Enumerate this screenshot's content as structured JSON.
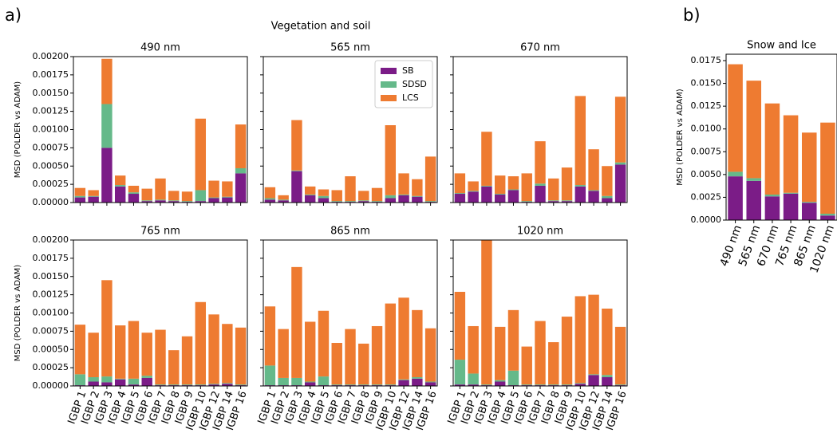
{
  "figure": {
    "panel_a": "a)",
    "panel_b": "b)",
    "title": "Vegetation and soil"
  },
  "chart_data": [
    {
      "type": "bar",
      "stacked": true,
      "title": "490 nm",
      "ylabel": "MSD (POLDER vs ADAM)",
      "ylim": [
        0,
        0.002
      ],
      "yticks": [
        {
          "value": 0,
          "label": "0.00000"
        },
        {
          "value": 0.00025,
          "label": "0.00025"
        },
        {
          "value": 0.0005,
          "label": "0.00050"
        },
        {
          "value": 0.00075,
          "label": "0.00075"
        },
        {
          "value": 0.001,
          "label": "0.00100"
        },
        {
          "value": 0.00125,
          "label": "0.00125"
        },
        {
          "value": 0.0015,
          "label": "0.00150"
        },
        {
          "value": 0.00175,
          "label": "0.00175"
        },
        {
          "value": 0.002,
          "label": "0.00200"
        }
      ],
      "series": [
        {
          "color": "#7b1c87",
          "values": [
            7e-05,
            8e-05,
            0.00075,
            0.00022,
            0.00012,
            2e-05,
            3e-05,
            2e-05,
            1e-05,
            2e-05,
            6e-05,
            7e-05,
            0.0004
          ]
        },
        {
          "color": "#65b98a",
          "values": [
            2e-05,
            1e-05,
            0.0006,
            2e-05,
            2e-05,
            1e-05,
            1e-05,
            1e-05,
            1e-05,
            0.00015,
            1e-05,
            1e-05,
            7e-05
          ]
        },
        {
          "color": "#ee7b31",
          "values": [
            0.00011,
            8e-05,
            0.00062,
            0.00013,
            9e-05,
            0.00016,
            0.00029,
            0.00013,
            0.00013,
            0.00098,
            0.00023,
            0.00021,
            0.0006
          ]
        }
      ]
    },
    {
      "type": "bar",
      "stacked": true,
      "title": "565 nm",
      "ylim": [
        0,
        0.002
      ],
      "legend": "upper right",
      "yticks": [
        0,
        0.00025,
        0.0005,
        0.00075,
        0.001,
        0.00125,
        0.0015,
        0.00175,
        0.002
      ],
      "series": [
        {
          "name": "SB",
          "color": "#7b1c87",
          "values": [
            4e-05,
            3e-05,
            0.00043,
            0.0001,
            6e-05,
            1e-05,
            1e-05,
            2e-05,
            1e-05,
            6e-05,
            0.0001,
            8e-05,
            1e-05
          ]
        },
        {
          "name": "SDSD",
          "color": "#65b98a",
          "values": [
            2e-05,
            1e-05,
            1e-05,
            1e-05,
            3e-05,
            1e-05,
            1e-05,
            1e-05,
            1e-05,
            4e-05,
            1e-05,
            1e-05,
            1e-05
          ]
        },
        {
          "name": "LCS",
          "color": "#ee7b31",
          "values": [
            0.00015,
            6e-05,
            0.00069,
            0.00011,
            9e-05,
            0.00015,
            0.00034,
            0.00013,
            0.00018,
            0.00096,
            0.00029,
            0.00023,
            0.00061
          ]
        }
      ]
    },
    {
      "type": "bar",
      "stacked": true,
      "title": "670 nm",
      "ylim": [
        0,
        0.002
      ],
      "yticks": [
        0,
        0.00025,
        0.0005,
        0.00075,
        0.001,
        0.00125,
        0.0015,
        0.00175,
        0.002
      ],
      "series": [
        {
          "color": "#7b1c87",
          "values": [
            0.00012,
            0.00015,
            0.00022,
            0.00011,
            0.00017,
            1e-05,
            0.00023,
            2e-05,
            2e-05,
            0.00022,
            0.00016,
            6e-05,
            0.00052
          ]
        },
        {
          "color": "#65b98a",
          "values": [
            1e-05,
            1e-05,
            1e-05,
            1e-05,
            1e-05,
            1e-05,
            3e-05,
            1e-05,
            1e-05,
            2e-05,
            1e-05,
            3e-05,
            3e-05
          ]
        },
        {
          "color": "#ee7b31",
          "values": [
            0.00027,
            0.00013,
            0.00074,
            0.00025,
            0.00018,
            0.00038,
            0.00058,
            0.0003,
            0.00045,
            0.00122,
            0.00056,
            0.00041,
            0.0009
          ]
        }
      ]
    },
    {
      "type": "bar",
      "stacked": true,
      "title": "765 nm",
      "ylabel": "MSD (POLDER vs ADAM)",
      "ylim": [
        0,
        0.002
      ],
      "yticks": [
        {
          "value": 0,
          "label": "0.00000"
        },
        {
          "value": 0.00025,
          "label": "0.00025"
        },
        {
          "value": 0.0005,
          "label": "0.00050"
        },
        {
          "value": 0.00075,
          "label": "0.00075"
        },
        {
          "value": 0.001,
          "label": "0.00100"
        },
        {
          "value": 0.00125,
          "label": "0.00125"
        },
        {
          "value": 0.0015,
          "label": "0.00150"
        },
        {
          "value": 0.00175,
          "label": "0.00175"
        },
        {
          "value": 0.002,
          "label": "0.00200"
        }
      ],
      "categories": [
        "IGBP 1",
        "IGBP 2",
        "IGBP 3",
        "IGBP 4",
        "IGBP 5",
        "IGBP 6",
        "IGBP 7",
        "IGBP 8",
        "IGBP 9",
        "IGBP 10",
        "IGBP 12",
        "IGBP 14",
        "IGBP 16"
      ],
      "series": [
        {
          "color": "#7b1c87",
          "values": [
            1e-05,
            6e-05,
            5e-05,
            9e-05,
            2e-05,
            0.00011,
            1e-05,
            1e-05,
            1e-05,
            1e-05,
            2e-05,
            3e-05,
            1e-05
          ]
        },
        {
          "color": "#65b98a",
          "values": [
            0.00015,
            6e-05,
            8e-05,
            1e-05,
            8e-05,
            3e-05,
            1e-05,
            1e-05,
            1e-05,
            1e-05,
            1e-05,
            1e-05,
            1e-05
          ]
        },
        {
          "color": "#ee7b31",
          "values": [
            0.00068,
            0.00061,
            0.00132,
            0.00073,
            0.00079,
            0.00059,
            0.00075,
            0.00047,
            0.00066,
            0.00113,
            0.00095,
            0.00081,
            0.00078
          ]
        }
      ]
    },
    {
      "type": "bar",
      "stacked": true,
      "title": "865 nm",
      "ylim": [
        0,
        0.002
      ],
      "yticks": [
        0,
        0.00025,
        0.0005,
        0.00075,
        0.001,
        0.00125,
        0.0015,
        0.00175,
        0.002
      ],
      "categories": [
        "IGBP 1",
        "IGBP 2",
        "IGBP 3",
        "IGBP 4",
        "IGBP 5",
        "IGBP 6",
        "IGBP 7",
        "IGBP 8",
        "IGBP 9",
        "IGBP 10",
        "IGBP 12",
        "IGBP 14",
        "IGBP 16"
      ],
      "series": [
        {
          "color": "#7b1c87",
          "values": [
            1e-05,
            1e-05,
            1e-05,
            5e-05,
            1e-05,
            1e-05,
            1e-05,
            1e-05,
            1e-05,
            1e-05,
            8e-05,
            0.0001,
            5e-05
          ]
        },
        {
          "color": "#65b98a",
          "values": [
            0.00027,
            0.0001,
            0.0001,
            1e-05,
            0.00012,
            1e-05,
            1e-05,
            1e-05,
            1e-05,
            1e-05,
            1e-05,
            2e-05,
            1e-05
          ]
        },
        {
          "color": "#ee7b31",
          "values": [
            0.00081,
            0.00067,
            0.00152,
            0.00082,
            0.0009,
            0.00057,
            0.00076,
            0.00056,
            0.0008,
            0.00111,
            0.00112,
            0.00092,
            0.00073
          ]
        }
      ]
    },
    {
      "type": "bar",
      "stacked": true,
      "title": "1020 nm",
      "ylim": [
        0,
        0.002
      ],
      "yticks": [
        0,
        0.00025,
        0.0005,
        0.00075,
        0.001,
        0.00125,
        0.0015,
        0.00175,
        0.002
      ],
      "categories": [
        "IGBP 1",
        "IGBP 2",
        "IGBP 3",
        "IGBP 4",
        "IGBP 5",
        "IGBP 6",
        "IGBP 7",
        "IGBP 8",
        "IGBP 9",
        "IGBP 10",
        "IGBP 12",
        "IGBP 14",
        "IGBP 16"
      ],
      "series": [
        {
          "color": "#7b1c87",
          "values": [
            2e-05,
            2e-05,
            1e-05,
            6e-05,
            1e-05,
            1e-05,
            1e-05,
            1e-05,
            1e-05,
            3e-05,
            0.00015,
            0.00012,
            1e-05
          ]
        },
        {
          "color": "#65b98a",
          "values": [
            0.00034,
            0.00015,
            1e-05,
            2e-05,
            0.0002,
            1e-05,
            1e-05,
            1e-05,
            1e-05,
            1e-05,
            1e-05,
            3e-05,
            1e-05
          ]
        },
        {
          "color": "#ee7b31",
          "values": [
            0.00093,
            0.00065,
            0.00203,
            0.00073,
            0.00083,
            0.00052,
            0.00087,
            0.00058,
            0.00093,
            0.00119,
            0.00109,
            0.00091,
            0.00079
          ]
        }
      ]
    },
    {
      "type": "bar",
      "stacked": true,
      "title": "Snow and Ice",
      "ylabel": "MSD (POLDER vs ADAM)",
      "ylim": [
        0,
        0.0182
      ],
      "yticks": [
        {
          "value": 0,
          "label": "0.0000"
        },
        {
          "value": 0.0025,
          "label": "0.0025"
        },
        {
          "value": 0.005,
          "label": "0.0050"
        },
        {
          "value": 0.0075,
          "label": "0.0075"
        },
        {
          "value": 0.01,
          "label": "0.0100"
        },
        {
          "value": 0.0125,
          "label": "0.0125"
        },
        {
          "value": 0.015,
          "label": "0.0150"
        },
        {
          "value": 0.0175,
          "label": "0.0175"
        }
      ],
      "categories": [
        "490 nm",
        "565 nm",
        "670 nm",
        "765 nm",
        "865 nm",
        "1020 nm"
      ],
      "series": [
        {
          "color": "#7b1c87",
          "values": [
            0.0048,
            0.0043,
            0.0026,
            0.0029,
            0.0019,
            0.0005
          ]
        },
        {
          "color": "#65b98a",
          "values": [
            0.0005,
            0.0003,
            0.0002,
            0.0001,
            0.0001,
            0.0002
          ]
        },
        {
          "color": "#ee7b31",
          "values": [
            0.0118,
            0.0107,
            0.01,
            0.0085,
            0.0076,
            0.01
          ]
        }
      ]
    }
  ]
}
